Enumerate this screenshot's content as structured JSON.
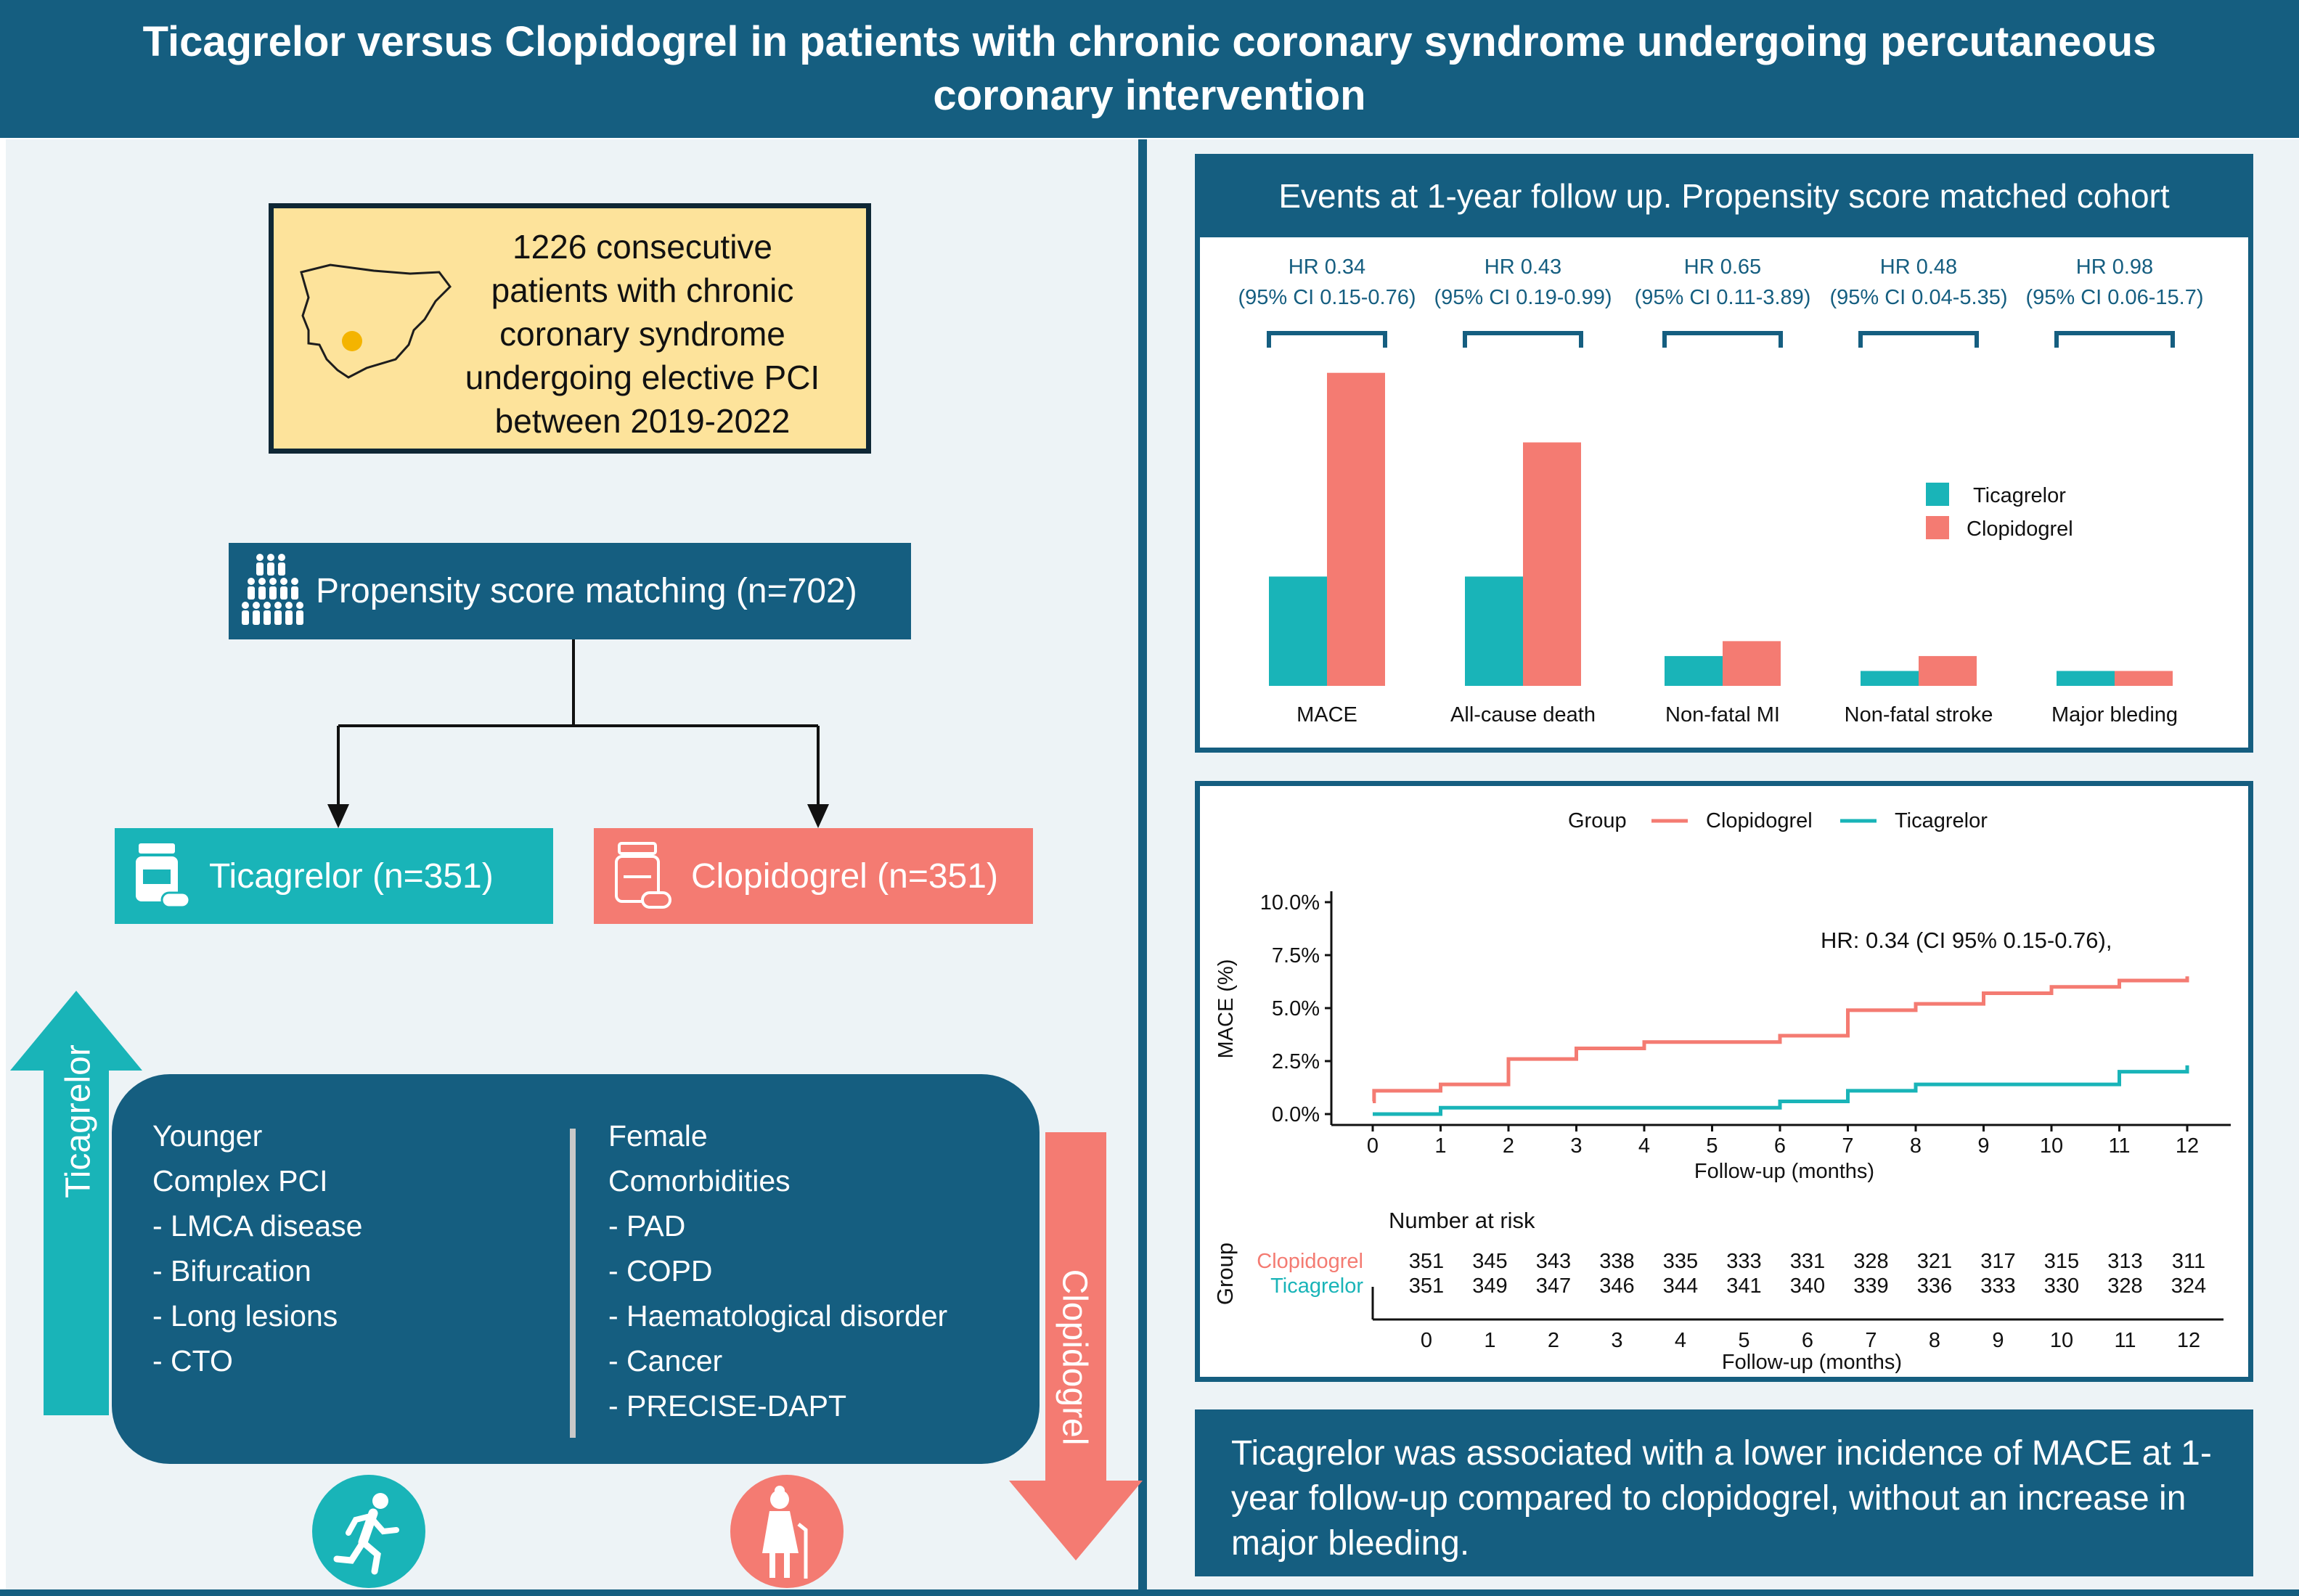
{
  "header": {
    "title": "Ticagrelor versus Clopidogrel in patients with chronic coronary syndrome undergoing percutaneous coronary intervention"
  },
  "cohort": {
    "lines": [
      "1226 consecutive",
      "patients with chronic",
      "coronary syndrome",
      "undergoing elective PCI",
      "between 2019-2022"
    ]
  },
  "matching": {
    "label": "Propensity score matching (n=702)"
  },
  "arms": {
    "ticagrelor": "Ticagrelor (n=351)",
    "clopidogrel": "Clopidogrel (n=351)"
  },
  "arrows": {
    "ticagrelor": "Ticagrelor",
    "clopidogrel": "Clopidogrel"
  },
  "predictors": {
    "ticagrelor": [
      "Younger",
      "Complex PCI",
      "- LMCA disease",
      "- Bifurcation",
      "- Long lesions",
      "- CTO"
    ],
    "clopidogrel": [
      "Female",
      "Comorbidities",
      "- PAD",
      "- COPD",
      "- Haematological disorder",
      "- Cancer",
      "- PRECISE-DAPT"
    ]
  },
  "bar_panel": {
    "title": "Events at 1-year follow up. Propensity score matched cohort"
  },
  "km_panel": {
    "hr_text": "HR: 0.34 (CI 95% 0.15-0.76),",
    "number_at_risk_label": "Number at risk",
    "group_label": "Group"
  },
  "conclusion": {
    "text": "Ticagrelor was associated with a lower incidence of MACE at 1-year follow-up compared to clopidogrel, without an increase in major bleeding."
  },
  "colors": {
    "primary": "#155e80",
    "ticagrelor": "#19b4b8",
    "clopidogrel": "#f47b72",
    "cohort_bg": "#fde39b"
  },
  "chart_data": [
    {
      "type": "bar",
      "title": "Events at 1-year follow up. Propensity score matched cohort",
      "categories": [
        "MACE",
        "All-cause death",
        "Non-fatal MI",
        "Non-fatal stroke",
        "Major bleding"
      ],
      "series": [
        {
          "name": "Ticagrelor",
          "values": [
            2.2,
            2.2,
            0.6,
            0.3,
            0.3
          ]
        },
        {
          "name": "Clopidogrel",
          "values": [
            6.3,
            4.9,
            0.9,
            0.6,
            0.3
          ]
        }
      ],
      "hr_labels": [
        {
          "hr": "HR 0.34",
          "ci": "(95% CI 0.15-0.76)"
        },
        {
          "hr": "HR 0.43",
          "ci": "(95% CI 0.19-0.99)"
        },
        {
          "hr": "HR 0.65",
          "ci": "(95% CI 0.11-3.89)"
        },
        {
          "hr": "HR 0.48",
          "ci": "(95% CI 0.04-5.35)"
        },
        {
          "hr": "HR 0.98",
          "ci": "(95% CI 0.06-15.7)"
        }
      ],
      "ylim": [
        0,
        6.5
      ],
      "legend": "right"
    },
    {
      "type": "line",
      "legend_title": "Group",
      "legend_position": "top",
      "xlabel": "Follow-up (months)",
      "ylabel": "MACE (%)",
      "xlim": [
        0,
        12
      ],
      "ylim": [
        0,
        10
      ],
      "x_ticks": [
        0,
        1,
        2,
        3,
        4,
        5,
        6,
        7,
        8,
        9,
        10,
        11,
        12
      ],
      "y_ticks": [
        "0.0%",
        "2.5%",
        "5.0%",
        "7.5%",
        "10.0%"
      ],
      "y_tick_values": [
        0,
        2.5,
        5,
        7.5,
        10
      ],
      "series": [
        {
          "name": "Clopidogrel",
          "steps": [
            [
              0,
              0.6
            ],
            [
              0.02,
              1.1
            ],
            [
              1,
              1.4
            ],
            [
              2,
              2.6
            ],
            [
              3,
              3.1
            ],
            [
              4,
              3.4
            ],
            [
              6,
              3.7
            ],
            [
              7,
              4.9
            ],
            [
              8,
              5.2
            ],
            [
              9,
              5.7
            ],
            [
              10,
              6.0
            ],
            [
              11,
              6.3
            ],
            [
              12,
              6.5
            ]
          ]
        },
        {
          "name": "Ticagrelor",
          "steps": [
            [
              0,
              0.0
            ],
            [
              1,
              0.3
            ],
            [
              6,
              0.6
            ],
            [
              7,
              1.1
            ],
            [
              8,
              1.4
            ],
            [
              11,
              2.0
            ],
            [
              12,
              2.3
            ]
          ]
        }
      ],
      "risk_table": {
        "label": "Number at risk",
        "xlabel": "Follow-up (months)",
        "groups": [
          "Clopidogrel",
          "Ticagrelor"
        ],
        "Clopidogrel": [
          351,
          345,
          343,
          338,
          335,
          333,
          331,
          328,
          321,
          317,
          315,
          313,
          311
        ],
        "Ticagrelor": [
          351,
          349,
          347,
          346,
          344,
          341,
          340,
          339,
          336,
          333,
          330,
          328,
          324
        ]
      }
    }
  ]
}
